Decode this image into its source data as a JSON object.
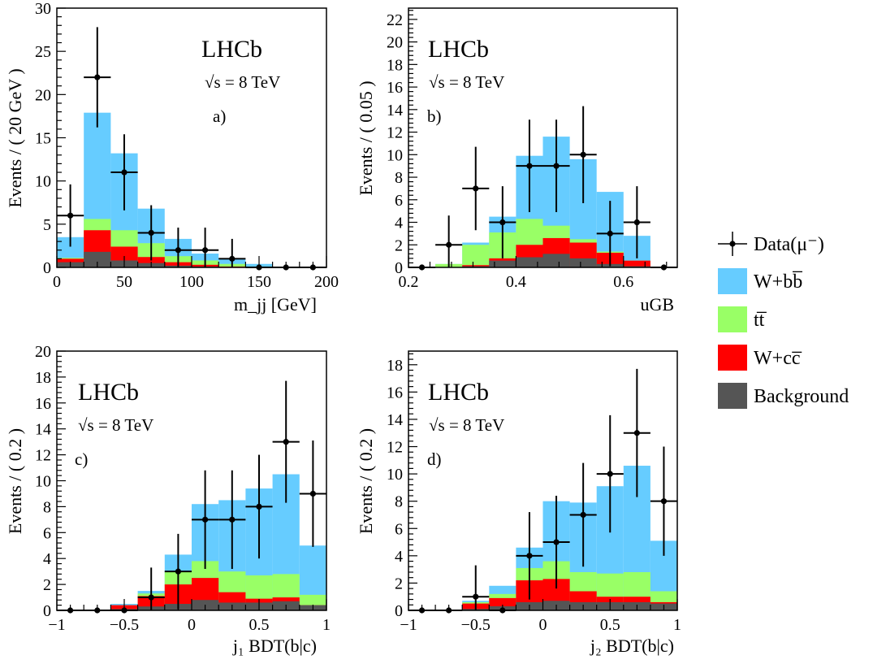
{
  "experiment_label": "LHCb",
  "energy_label": "√s = 8 TeV",
  "legend": {
    "placement": "right",
    "entries": [
      {
        "key": "data",
        "label": "Data(μ⁻)",
        "style": "marker"
      },
      {
        "key": "wbb",
        "label": "W+bb̅",
        "color": "#66ccff",
        "style": "box"
      },
      {
        "key": "tt",
        "label": "tt̅",
        "color": "#99ff66",
        "style": "box"
      },
      {
        "key": "wcc",
        "label": "W+cc̅",
        "color": "#ff0000",
        "style": "box"
      },
      {
        "key": "bkg",
        "label": "Background",
        "color": "#555555",
        "style": "box"
      }
    ]
  },
  "colors": {
    "wbb": "#66ccff",
    "tt": "#99ff66",
    "wcc": "#ff0000",
    "bkg": "#555555",
    "data": "#000000"
  },
  "chart_data": [
    {
      "type": "bar",
      "panel_label": "a)",
      "ylabel": "Events / ( 20 GeV )",
      "xlabel": "m_jj [GeV]",
      "xlim": [
        0,
        200
      ],
      "ylim": [
        0,
        30
      ],
      "xticks": [
        0,
        50,
        100,
        150,
        200
      ],
      "yticks": [
        0,
        5,
        10,
        15,
        20,
        25,
        30
      ],
      "bin_edges": [
        0,
        20,
        40,
        60,
        80,
        100,
        120,
        140,
        160,
        180,
        200
      ],
      "stack": {
        "bkg": [
          0.6,
          1.8,
          0.8,
          0.5,
          0.2,
          0.1,
          0.05,
          0.0,
          0.0,
          0.0
        ],
        "wcc": [
          1.0,
          4.3,
          2.4,
          1.2,
          0.6,
          0.3,
          0.1,
          0.0,
          0.0,
          0.0
        ],
        "tt": [
          1.1,
          5.6,
          4.3,
          2.8,
          1.3,
          0.8,
          0.4,
          0.1,
          0.0,
          0.0
        ],
        "total": [
          3.5,
          17.9,
          13.2,
          6.8,
          3.3,
          1.6,
          1.0,
          0.4,
          0.0,
          0.0
        ]
      },
      "data": {
        "x": [
          10,
          30,
          50,
          70,
          90,
          110,
          130,
          150,
          170,
          190
        ],
        "y": [
          6,
          22,
          11,
          4,
          2,
          2,
          1,
          0,
          0,
          0
        ],
        "yerr": [
          3.6,
          5.8,
          4.4,
          3.2,
          2.6,
          2.6,
          2.3,
          0,
          0,
          0
        ]
      }
    },
    {
      "type": "bar",
      "panel_label": "b)",
      "ylabel": "Events / ( 0.05 )",
      "xlabel": "uGB",
      "xlim": [
        0.2,
        0.7
      ],
      "ylim": [
        0,
        23
      ],
      "xticks": [
        0.2,
        0.4,
        0.6
      ],
      "yticks": [
        0,
        2,
        4,
        6,
        8,
        10,
        12,
        14,
        16,
        18,
        20,
        22
      ],
      "bin_edges": [
        0.2,
        0.25,
        0.3,
        0.35,
        0.4,
        0.45,
        0.5,
        0.55,
        0.6,
        0.65,
        0.7
      ],
      "stack": {
        "bkg": [
          0.0,
          0.0,
          0.1,
          0.6,
          0.9,
          1.2,
          0.8,
          0.3,
          0.1,
          0.0
        ],
        "wcc": [
          0.0,
          0.0,
          0.2,
          0.8,
          2.0,
          2.6,
          2.2,
          1.3,
          0.6,
          0.0
        ],
        "tt": [
          0.0,
          0.3,
          2.0,
          3.1,
          4.3,
          3.7,
          2.5,
          1.4,
          0.6,
          0.0
        ],
        "total": [
          0.0,
          0.3,
          2.2,
          4.5,
          9.9,
          11.6,
          9.6,
          6.7,
          2.8,
          0.0
        ]
      },
      "data": {
        "x": [
          0.225,
          0.275,
          0.325,
          0.375,
          0.425,
          0.475,
          0.525,
          0.575,
          0.625,
          0.675
        ],
        "y": [
          0,
          2,
          7,
          4,
          9,
          9,
          10,
          3,
          4,
          0
        ],
        "yerr": [
          0,
          2.6,
          3.7,
          3.2,
          4.1,
          4.1,
          4.3,
          2.9,
          3.2,
          0
        ]
      }
    },
    {
      "type": "bar",
      "panel_label": "c)",
      "ylabel": "Events / ( 0.2 )",
      "xlabel": "j₁ BDT(b|c)",
      "xlim": [
        -1,
        1
      ],
      "ylim": [
        0,
        20
      ],
      "xticks": [
        -1,
        -0.5,
        0,
        0.5,
        1
      ],
      "yticks": [
        0,
        2,
        4,
        6,
        8,
        10,
        12,
        14,
        16,
        18,
        20
      ],
      "bin_edges": [
        -1,
        -0.8,
        -0.6,
        -0.4,
        -0.2,
        0,
        0.2,
        0.4,
        0.6,
        0.8,
        1
      ],
      "stack": {
        "bkg": [
          0.0,
          0.0,
          0.1,
          0.3,
          0.5,
          0.8,
          0.6,
          0.6,
          0.7,
          0.4
        ],
        "wcc": [
          0.0,
          0.0,
          0.4,
          1.1,
          2.0,
          2.5,
          1.4,
          0.9,
          1.0,
          0.4
        ],
        "tt": [
          0.0,
          0.0,
          0.4,
          1.3,
          3.0,
          3.8,
          3.0,
          2.7,
          2.8,
          1.2
        ],
        "total": [
          0.0,
          0.0,
          0.5,
          1.5,
          4.3,
          8.2,
          8.5,
          9.4,
          10.5,
          5.0
        ]
      },
      "data": {
        "x": [
          -0.9,
          -0.7,
          -0.5,
          -0.3,
          -0.1,
          0.1,
          0.3,
          0.5,
          0.7,
          0.9
        ],
        "y": [
          0,
          0,
          0,
          1,
          3,
          7,
          7,
          8,
          13,
          9
        ],
        "yerr": [
          0,
          0,
          0,
          2.3,
          2.9,
          3.8,
          3.8,
          4.0,
          4.7,
          4.1
        ]
      }
    },
    {
      "type": "bar",
      "panel_label": "d)",
      "ylabel": "Events / ( 0.2 )",
      "xlabel": "j₂ BDT(b|c)",
      "xlim": [
        -1,
        1
      ],
      "ylim": [
        0,
        19
      ],
      "xticks": [
        -1,
        -0.5,
        0,
        0.5,
        1
      ],
      "yticks": [
        0,
        2,
        4,
        6,
        8,
        10,
        12,
        14,
        16,
        18
      ],
      "bin_edges": [
        -1,
        -0.8,
        -0.6,
        -0.4,
        -0.2,
        0,
        0.2,
        0.4,
        0.6,
        0.8,
        1
      ],
      "stack": {
        "bkg": [
          0.0,
          0.0,
          0.1,
          0.3,
          0.6,
          0.7,
          0.6,
          0.6,
          0.6,
          0.5
        ],
        "wcc": [
          0.0,
          0.0,
          0.5,
          0.9,
          2.2,
          2.3,
          1.4,
          1.0,
          1.0,
          0.6
        ],
        "tt": [
          0.0,
          0.0,
          0.6,
          1.2,
          3.1,
          3.6,
          2.8,
          2.7,
          2.8,
          1.4
        ],
        "total": [
          0.0,
          0.0,
          0.7,
          1.8,
          4.6,
          8.0,
          7.9,
          9.1,
          10.6,
          5.1
        ]
      },
      "data": {
        "x": [
          -0.9,
          -0.7,
          -0.5,
          -0.3,
          -0.1,
          0.1,
          0.3,
          0.5,
          0.7,
          0.9
        ],
        "y": [
          0,
          0,
          1,
          0,
          4,
          5,
          7,
          10,
          13,
          8
        ],
        "yerr": [
          0,
          0,
          2.3,
          0,
          3.2,
          3.4,
          3.8,
          4.3,
          4.7,
          4.0
        ]
      }
    }
  ]
}
